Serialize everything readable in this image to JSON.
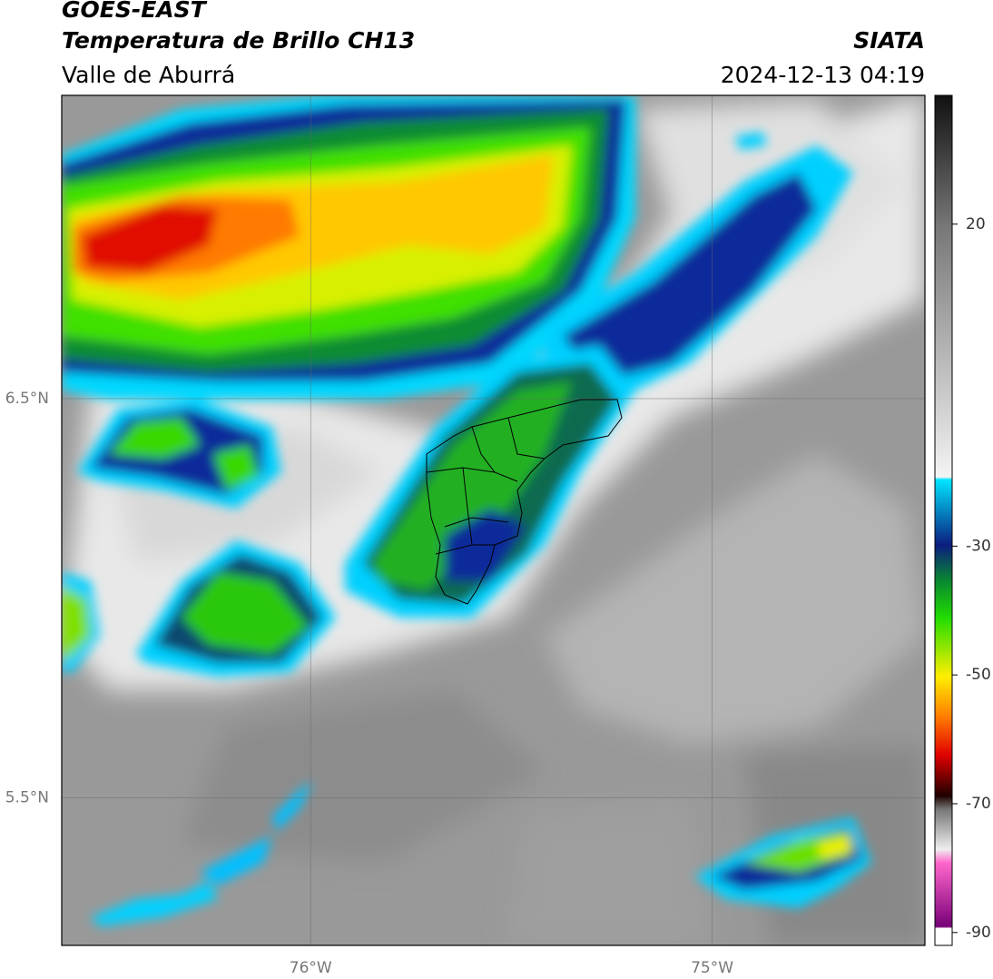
{
  "header": {
    "title": "GOES-EAST",
    "subtitle": "Temperatura de Brillo CH13",
    "source": "SIATA",
    "region": "Valle de Aburrá",
    "timestamp": "2024-12-13 04:19"
  },
  "map": {
    "xlim": [
      -76.62,
      -74.47
    ],
    "ylim": [
      5.13,
      7.26
    ],
    "xticks": [
      {
        "value": -76,
        "label": "76°W"
      },
      {
        "value": -75,
        "label": "75°W"
      }
    ],
    "yticks": [
      {
        "value": 5.5,
        "label": "5.5°N"
      },
      {
        "value": 6.5,
        "label": "6.5°N"
      }
    ],
    "grid": true
  },
  "colorbar": {
    "lim": [
      -92,
      40
    ],
    "ticks": [
      20,
      -30,
      -50,
      -70,
      -90
    ]
  }
}
